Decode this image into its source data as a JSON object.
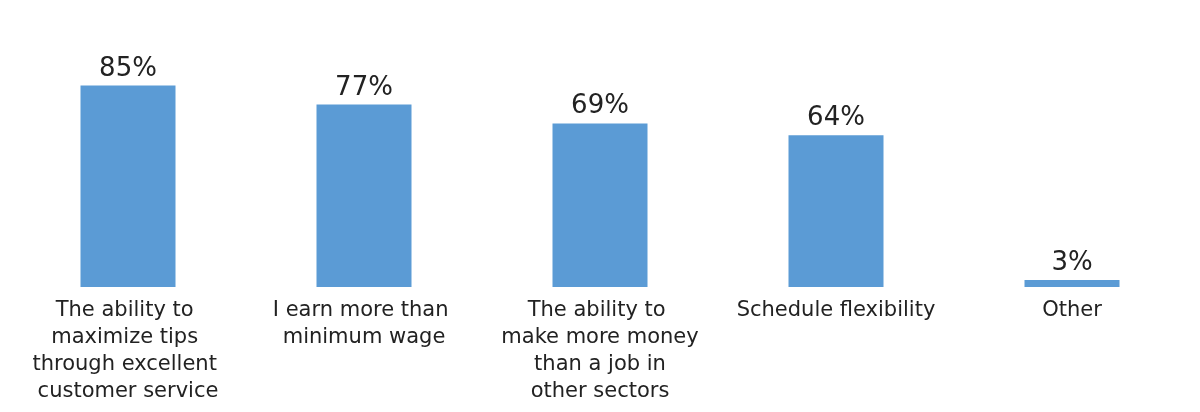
{
  "chart_data": {
    "type": "bar",
    "categories": [
      "The ability to maximize tips through excellent customer service",
      "I earn more than minimum wage",
      "The ability to make more money than a job in other sectors",
      "Schedule flexibility",
      "Other"
    ],
    "values": [
      85,
      77,
      69,
      64,
      3
    ],
    "value_labels": [
      "85%",
      "77%",
      "69%",
      "64%",
      "3%"
    ],
    "color": "#5b9bd5"
  }
}
